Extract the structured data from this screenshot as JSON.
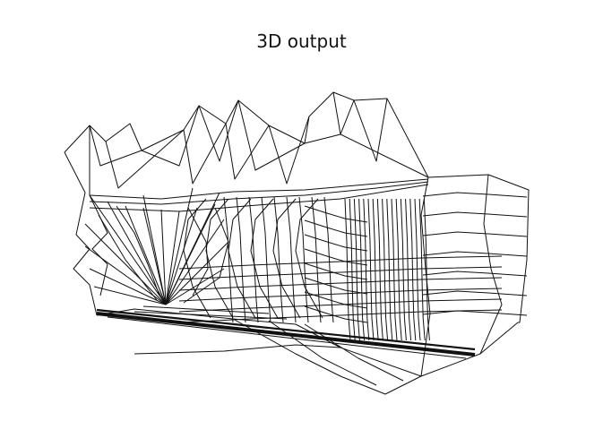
{
  "figure": {
    "title": "3D output"
  }
}
